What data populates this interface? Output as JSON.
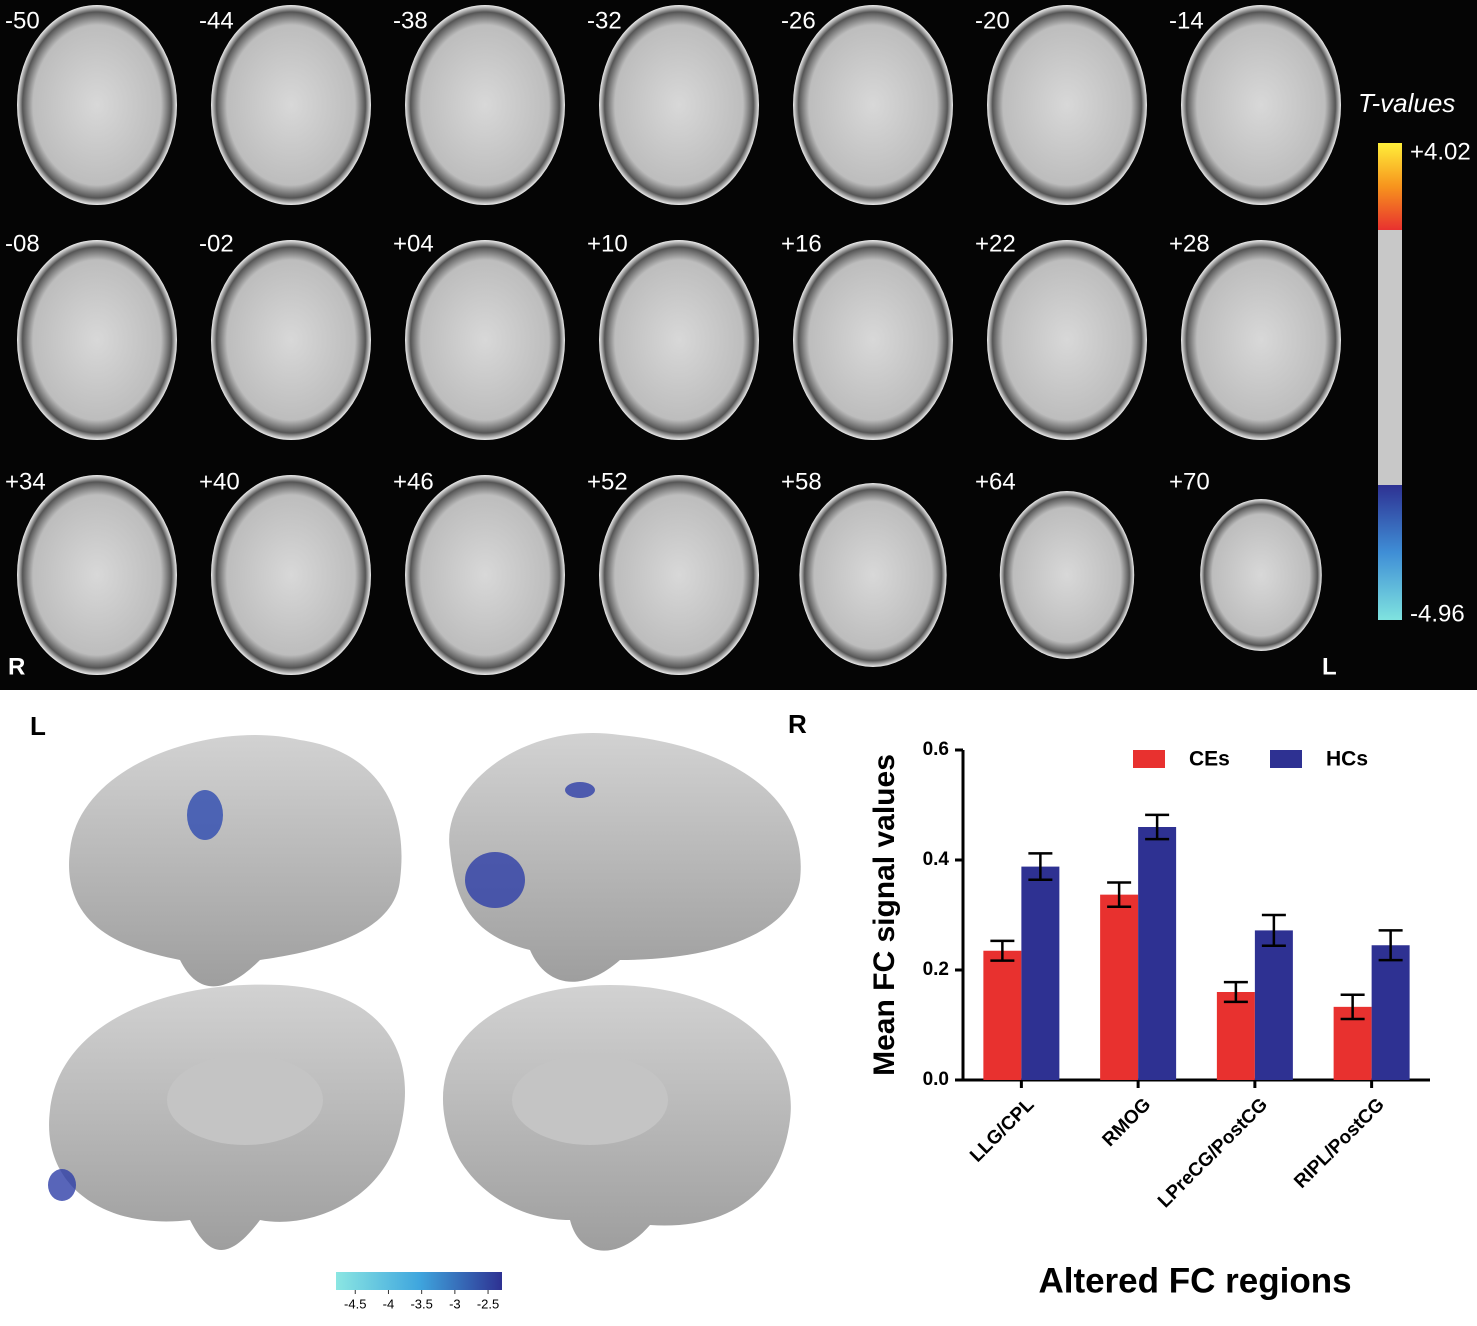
{
  "slices": {
    "labels": [
      "-50",
      "-44",
      "-38",
      "-32",
      "-26",
      "-20",
      "-14",
      "-08",
      "-02",
      "+04",
      "+10",
      "+16",
      "+22",
      "+28",
      "+34",
      "+40",
      "+46",
      "+52",
      "+58",
      "+64",
      "+70"
    ],
    "right": "R",
    "left": "L"
  },
  "tmap_colorbar": {
    "title": "T-values",
    "max_label": "+4.02",
    "min_label": "-4.96"
  },
  "surface": {
    "left": "L",
    "right": "R",
    "colorbar": {
      "clim": [
        -4.79,
        -2.29
      ],
      "ticks": [
        -4.5,
        -4,
        -3.5,
        -3,
        -2.5
      ]
    }
  },
  "chart_data": {
    "type": "bar",
    "ylabel": "Mean FC signal values",
    "xlabel": "Altered FC regions",
    "categories": [
      "LLG/CPL",
      "RMOG",
      "LPreCG/PostCG",
      "RIPL/PostCG"
    ],
    "series": [
      {
        "name": "CEs",
        "color": "#e8312f",
        "values": [
          0.235,
          0.337,
          0.16,
          0.133
        ],
        "errors": [
          0.018,
          0.022,
          0.018,
          0.022
        ]
      },
      {
        "name": "HCs",
        "color": "#2e3192",
        "values": [
          0.388,
          0.46,
          0.272,
          0.245
        ],
        "errors": [
          0.024,
          0.022,
          0.028,
          0.027
        ]
      }
    ],
    "ylim": [
      0,
      0.6
    ],
    "yticks": [
      {
        "value": 0,
        "label": "0.0"
      },
      0.2,
      0.4,
      0.6
    ],
    "legend": "top-right"
  }
}
